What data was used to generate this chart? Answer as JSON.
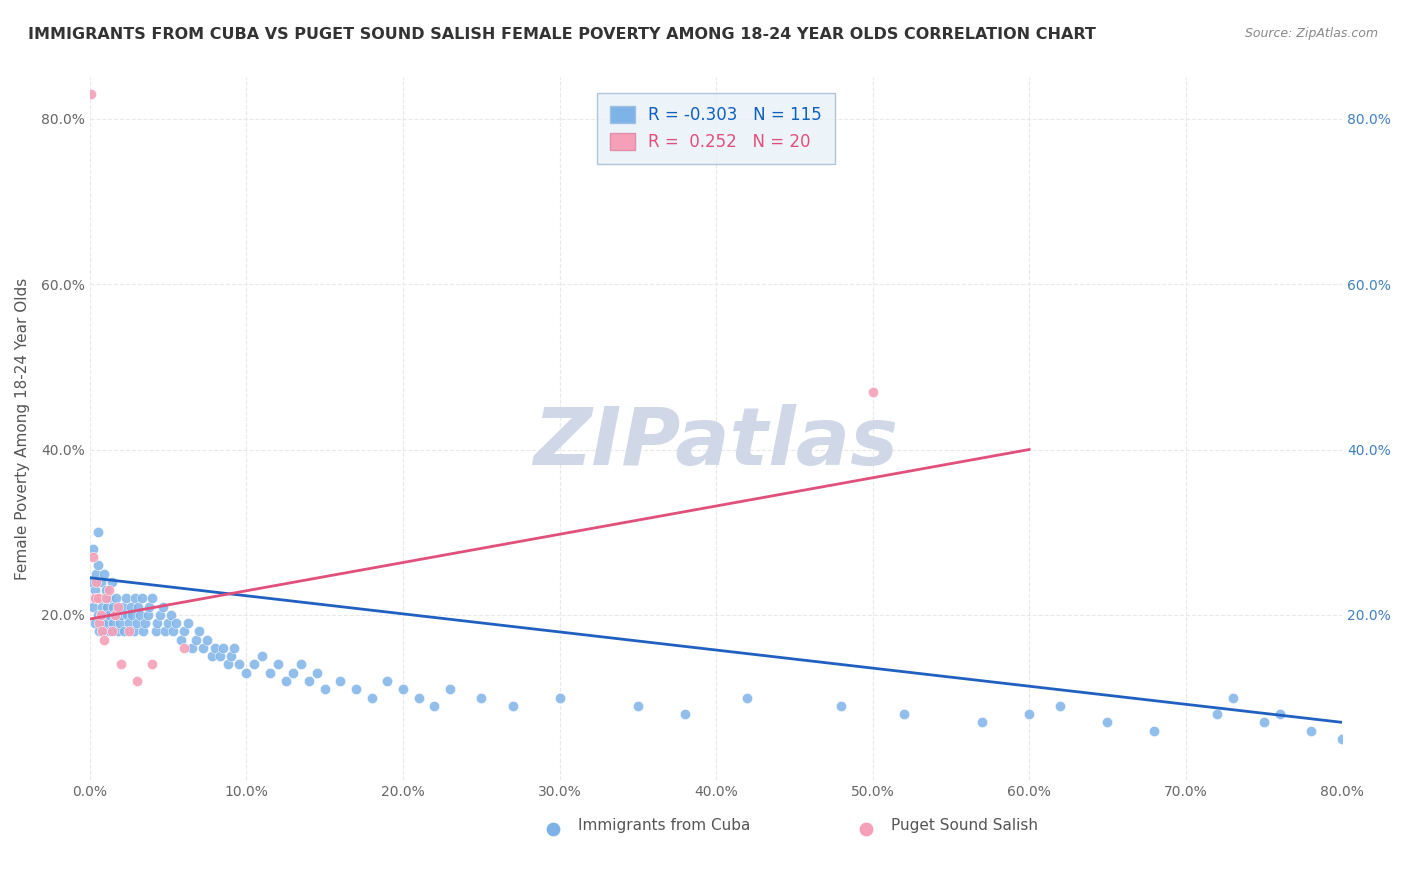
{
  "title": "IMMIGRANTS FROM CUBA VS PUGET SOUND SALISH FEMALE POVERTY AMONG 18-24 YEAR OLDS CORRELATION CHART",
  "source": "Source: ZipAtlas.com",
  "xlabel": "",
  "ylabel": "Female Poverty Among 18-24 Year Olds",
  "xlim": [
    0.0,
    0.8
  ],
  "ylim": [
    0.0,
    0.85
  ],
  "xticks": [
    0.0,
    0.1,
    0.2,
    0.3,
    0.4,
    0.5,
    0.6,
    0.7,
    0.8
  ],
  "yticks": [
    0.0,
    0.2,
    0.4,
    0.6,
    0.8
  ],
  "xtick_labels": [
    "0.0%",
    "10.0%",
    "20.0%",
    "30.0%",
    "40.0%",
    "50.0%",
    "60.0%",
    "70.0%",
    "80.0%"
  ],
  "ytick_labels_left": [
    "",
    "20.0%",
    "40.0%",
    "60.0%",
    "80.0%"
  ],
  "ytick_labels_right": [
    "",
    "20.0%",
    "40.0%",
    "60.0%",
    "80.0%"
  ],
  "series_blue": {
    "label": "Immigrants from Cuba",
    "R": -0.303,
    "N": 115,
    "color": "#7EB3E8",
    "trend_color": "#2060C0"
  },
  "series_pink": {
    "label": "Puget Sound Salish",
    "R": 0.252,
    "N": 20,
    "color": "#F5A0B8",
    "trend_color": "#E0507A"
  },
  "blue_scatter_x": [
    0.001,
    0.002,
    0.002,
    0.003,
    0.003,
    0.004,
    0.004,
    0.005,
    0.005,
    0.005,
    0.006,
    0.006,
    0.007,
    0.007,
    0.008,
    0.008,
    0.009,
    0.009,
    0.01,
    0.01,
    0.01,
    0.011,
    0.011,
    0.012,
    0.012,
    0.013,
    0.014,
    0.015,
    0.015,
    0.016,
    0.017,
    0.018,
    0.019,
    0.02,
    0.021,
    0.022,
    0.023,
    0.024,
    0.025,
    0.026,
    0.027,
    0.028,
    0.029,
    0.03,
    0.031,
    0.032,
    0.033,
    0.034,
    0.035,
    0.037,
    0.038,
    0.04,
    0.042,
    0.043,
    0.045,
    0.047,
    0.048,
    0.05,
    0.052,
    0.053,
    0.055,
    0.058,
    0.06,
    0.063,
    0.065,
    0.068,
    0.07,
    0.072,
    0.075,
    0.078,
    0.08,
    0.083,
    0.085,
    0.088,
    0.09,
    0.092,
    0.095,
    0.1,
    0.105,
    0.11,
    0.115,
    0.12,
    0.125,
    0.13,
    0.135,
    0.14,
    0.145,
    0.15,
    0.16,
    0.17,
    0.18,
    0.19,
    0.2,
    0.21,
    0.22,
    0.23,
    0.25,
    0.27,
    0.3,
    0.35,
    0.38,
    0.42,
    0.48,
    0.52,
    0.57,
    0.6,
    0.62,
    0.65,
    0.68,
    0.72,
    0.75,
    0.78,
    0.8,
    0.73,
    0.76
  ],
  "blue_scatter_y": [
    0.24,
    0.21,
    0.28,
    0.19,
    0.23,
    0.25,
    0.22,
    0.2,
    0.26,
    0.3,
    0.18,
    0.22,
    0.2,
    0.24,
    0.19,
    0.21,
    0.22,
    0.25,
    0.18,
    0.2,
    0.23,
    0.19,
    0.21,
    0.2,
    0.22,
    0.18,
    0.24,
    0.19,
    0.21,
    0.2,
    0.22,
    0.18,
    0.19,
    0.2,
    0.21,
    0.18,
    0.22,
    0.2,
    0.19,
    0.21,
    0.2,
    0.18,
    0.22,
    0.19,
    0.21,
    0.2,
    0.22,
    0.18,
    0.19,
    0.2,
    0.21,
    0.22,
    0.18,
    0.19,
    0.2,
    0.21,
    0.18,
    0.19,
    0.2,
    0.18,
    0.19,
    0.17,
    0.18,
    0.19,
    0.16,
    0.17,
    0.18,
    0.16,
    0.17,
    0.15,
    0.16,
    0.15,
    0.16,
    0.14,
    0.15,
    0.16,
    0.14,
    0.13,
    0.14,
    0.15,
    0.13,
    0.14,
    0.12,
    0.13,
    0.14,
    0.12,
    0.13,
    0.11,
    0.12,
    0.11,
    0.1,
    0.12,
    0.11,
    0.1,
    0.09,
    0.11,
    0.1,
    0.09,
    0.1,
    0.09,
    0.08,
    0.1,
    0.09,
    0.08,
    0.07,
    0.08,
    0.09,
    0.07,
    0.06,
    0.08,
    0.07,
    0.06,
    0.05,
    0.1,
    0.08
  ],
  "pink_scatter_x": [
    0.001,
    0.002,
    0.003,
    0.004,
    0.005,
    0.006,
    0.007,
    0.008,
    0.009,
    0.01,
    0.012,
    0.014,
    0.016,
    0.018,
    0.02,
    0.025,
    0.03,
    0.04,
    0.06,
    0.5
  ],
  "pink_scatter_y": [
    0.83,
    0.27,
    0.22,
    0.24,
    0.22,
    0.19,
    0.2,
    0.18,
    0.17,
    0.22,
    0.23,
    0.18,
    0.2,
    0.21,
    0.14,
    0.18,
    0.12,
    0.14,
    0.16,
    0.47
  ],
  "blue_trend_x": [
    0.0,
    0.8
  ],
  "blue_trend_y": [
    0.245,
    0.07
  ],
  "pink_trend_x": [
    0.0,
    0.6
  ],
  "pink_trend_y": [
    0.195,
    0.4
  ],
  "watermark": "ZIPatlas",
  "watermark_color": "#D0D8E8",
  "legend_box_color": "#E8F0F8",
  "legend_box_edge": "#A0B8D0",
  "background_color": "#FFFFFF",
  "grid_color": "#E8E8E8"
}
